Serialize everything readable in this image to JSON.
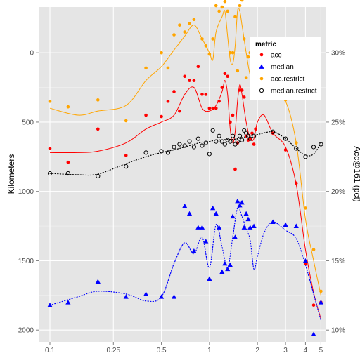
{
  "chart_data": {
    "type": "scatter",
    "x_scale": "log",
    "x_ticks": [
      0.1,
      0.25,
      0.5,
      1,
      2,
      3,
      4,
      5
    ],
    "x_tick_labels": [
      "0.1",
      "0.25",
      "0.5",
      "1",
      "2",
      "3",
      "4",
      "5"
    ],
    "xlim": [
      0.085,
      5.4
    ],
    "y_left": {
      "label": "Kilometers",
      "reversed": true,
      "ticks": [
        0,
        500,
        1000,
        1500,
        2000
      ],
      "tick_labels": [
        "0",
        "500",
        "1000",
        "1500",
        "2000"
      ],
      "lim": [
        2085,
        -330
      ]
    },
    "y_right": {
      "label": "Acc@161 (pct)",
      "ticks": [
        0.1,
        0.15,
        0.2,
        0.25,
        0.3
      ],
      "tick_labels": [
        "10%",
        "15%",
        "20%",
        "25%",
        "30%"
      ]
    },
    "right_axis_map": {
      "pct_at_0km": 0.3,
      "km_per_pct_point": 100
    },
    "grid": true,
    "legend": {
      "title": "metric",
      "position": "top-right",
      "entries": [
        {
          "label": "acc",
          "color": "#ff0000",
          "shape": "dot"
        },
        {
          "label": "median",
          "color": "#0000ff",
          "shape": "triangle"
        },
        {
          "label": "acc.restrict",
          "color": "#ffa500",
          "shape": "dot"
        },
        {
          "label": "median.restrict",
          "color": "#000000",
          "shape": "open-circle"
        }
      ]
    },
    "series": [
      {
        "name": "acc",
        "axis": "right",
        "color": "#ff0000",
        "shape": "dot",
        "line": "solid",
        "points": [
          [
            0.1,
            0.231
          ],
          [
            0.13,
            0.221
          ],
          [
            0.2,
            0.245
          ],
          [
            0.3,
            0.226
          ],
          [
            0.4,
            0.255
          ],
          [
            0.5,
            0.254
          ],
          [
            0.55,
            0.265
          ],
          [
            0.6,
            0.272
          ],
          [
            0.65,
            0.258
          ],
          [
            0.7,
            0.283
          ],
          [
            0.75,
            0.28
          ],
          [
            0.8,
            0.28
          ],
          [
            0.85,
            0.29
          ],
          [
            0.9,
            0.27
          ],
          [
            0.95,
            0.27
          ],
          [
            1.0,
            0.26
          ],
          [
            1.05,
            0.26
          ],
          [
            1.1,
            0.26
          ],
          [
            1.15,
            0.265
          ],
          [
            1.2,
            0.275
          ],
          [
            1.25,
            0.285
          ],
          [
            1.3,
            0.283
          ],
          [
            1.35,
            0.25
          ],
          [
            1.4,
            0.255
          ],
          [
            1.45,
            0.216
          ],
          [
            1.5,
            0.235
          ],
          [
            1.55,
            0.273
          ],
          [
            1.6,
            0.273
          ],
          [
            1.65,
            0.268
          ],
          [
            1.7,
            0.24
          ],
          [
            1.75,
            0.237
          ],
          [
            1.8,
            0.238
          ],
          [
            1.85,
            0.242
          ],
          [
            1.9,
            0.234
          ],
          [
            1.95,
            0.245
          ],
          [
            2.5,
            0.242
          ],
          [
            3.0,
            0.23
          ],
          [
            3.5,
            0.206
          ],
          [
            4.0,
            0.148
          ],
          [
            4.5,
            0.118
          ],
          [
            5.0,
            0.12
          ]
        ],
        "curve": [
          [
            0.1,
            0.228
          ],
          [
            0.15,
            0.228
          ],
          [
            0.2,
            0.229
          ],
          [
            0.3,
            0.235
          ],
          [
            0.4,
            0.245
          ],
          [
            0.5,
            0.25
          ],
          [
            0.6,
            0.255
          ],
          [
            0.7,
            0.27
          ],
          [
            0.8,
            0.275
          ],
          [
            0.9,
            0.26
          ],
          [
            1.0,
            0.258
          ],
          [
            1.1,
            0.262
          ],
          [
            1.2,
            0.272
          ],
          [
            1.25,
            0.28
          ],
          [
            1.3,
            0.27
          ],
          [
            1.35,
            0.245
          ],
          [
            1.4,
            0.235
          ],
          [
            1.45,
            0.243
          ],
          [
            1.5,
            0.265
          ],
          [
            1.55,
            0.277
          ],
          [
            1.6,
            0.27
          ],
          [
            1.7,
            0.25
          ],
          [
            1.8,
            0.238
          ],
          [
            1.9,
            0.238
          ],
          [
            2.0,
            0.25
          ],
          [
            2.2,
            0.255
          ],
          [
            2.5,
            0.242
          ],
          [
            3.0,
            0.232
          ],
          [
            3.5,
            0.205
          ],
          [
            4.0,
            0.158
          ],
          [
            4.5,
            0.127
          ],
          [
            5.0,
            0.108
          ]
        ]
      },
      {
        "name": "median",
        "axis": "left",
        "color": "#0000ff",
        "shape": "triangle",
        "line": "dotted",
        "points": [
          [
            0.1,
            1820
          ],
          [
            0.13,
            1800
          ],
          [
            0.2,
            1650
          ],
          [
            0.3,
            1760
          ],
          [
            0.4,
            1740
          ],
          [
            0.5,
            1760
          ],
          [
            0.6,
            1760
          ],
          [
            0.7,
            1105
          ],
          [
            0.75,
            1160
          ],
          [
            0.8,
            1430
          ],
          [
            0.85,
            1260
          ],
          [
            0.9,
            1260
          ],
          [
            0.95,
            1360
          ],
          [
            1.0,
            1630
          ],
          [
            1.05,
            1120
          ],
          [
            1.1,
            1160
          ],
          [
            1.15,
            1260
          ],
          [
            1.2,
            1580
          ],
          [
            1.25,
            1520
          ],
          [
            1.3,
            1560
          ],
          [
            1.35,
            1530
          ],
          [
            1.4,
            1180
          ],
          [
            1.45,
            1330
          ],
          [
            1.5,
            1070
          ],
          [
            1.55,
            1100
          ],
          [
            1.6,
            1080
          ],
          [
            1.65,
            1260
          ],
          [
            1.7,
            1160
          ],
          [
            1.75,
            1200
          ],
          [
            1.8,
            1260
          ],
          [
            1.9,
            1250
          ],
          [
            2.5,
            1220
          ],
          [
            3.0,
            1240
          ],
          [
            3.5,
            1250
          ],
          [
            4.0,
            1500
          ],
          [
            4.5,
            2030
          ],
          [
            5.0,
            1800
          ]
        ],
        "curve": [
          [
            0.1,
            1820
          ],
          [
            0.15,
            1760
          ],
          [
            0.2,
            1720
          ],
          [
            0.3,
            1740
          ],
          [
            0.4,
            1790
          ],
          [
            0.5,
            1760
          ],
          [
            0.6,
            1520
          ],
          [
            0.7,
            1370
          ],
          [
            0.8,
            1450
          ],
          [
            0.9,
            1330
          ],
          [
            1.0,
            1550
          ],
          [
            1.1,
            1240
          ],
          [
            1.2,
            1400
          ],
          [
            1.3,
            1550
          ],
          [
            1.4,
            1330
          ],
          [
            1.5,
            1120
          ],
          [
            1.6,
            1180
          ],
          [
            1.7,
            1270
          ],
          [
            1.8,
            1350
          ],
          [
            1.9,
            1560
          ],
          [
            2.0,
            1470
          ],
          [
            2.2,
            1300
          ],
          [
            2.5,
            1220
          ],
          [
            3.0,
            1280
          ],
          [
            3.5,
            1340
          ],
          [
            4.0,
            1530
          ],
          [
            4.5,
            1740
          ],
          [
            5.0,
            1930
          ]
        ]
      },
      {
        "name": "acc.restrict",
        "axis": "right",
        "color": "#ffa500",
        "shape": "dot",
        "line": "solid",
        "points": [
          [
            0.1,
            0.265
          ],
          [
            0.13,
            0.261
          ],
          [
            0.2,
            0.266
          ],
          [
            0.3,
            0.251
          ],
          [
            0.4,
            0.289
          ],
          [
            0.5,
            0.3
          ],
          [
            0.55,
            0.289
          ],
          [
            0.6,
            0.313
          ],
          [
            0.65,
            0.32
          ],
          [
            0.7,
            0.315
          ],
          [
            0.75,
            0.321
          ],
          [
            0.8,
            0.324
          ],
          [
            0.85,
            0.34
          ],
          [
            0.9,
            0.31
          ],
          [
            0.95,
            0.305
          ],
          [
            1.0,
            0.299
          ],
          [
            1.05,
            0.31
          ],
          [
            1.1,
            0.334
          ],
          [
            1.15,
            0.33
          ],
          [
            1.2,
            0.333
          ],
          [
            1.25,
            0.337
          ],
          [
            1.3,
            0.33
          ],
          [
            1.35,
            0.3
          ],
          [
            1.4,
            0.3
          ],
          [
            1.45,
            0.326
          ],
          [
            1.5,
            0.287
          ],
          [
            1.55,
            0.334
          ],
          [
            1.6,
            0.338
          ],
          [
            1.65,
            0.31
          ],
          [
            1.7,
            0.282
          ],
          [
            1.75,
            0.297
          ],
          [
            1.8,
            0.3
          ],
          [
            1.85,
            0.29
          ],
          [
            1.9,
            0.285
          ],
          [
            1.95,
            0.3
          ],
          [
            2.5,
            0.27
          ],
          [
            3.0,
            0.266
          ],
          [
            3.5,
            0.235
          ],
          [
            4.0,
            0.188
          ],
          [
            4.5,
            0.158
          ],
          [
            5.0,
            0.128
          ]
        ],
        "curve": [
          [
            0.1,
            0.26
          ],
          [
            0.15,
            0.255
          ],
          [
            0.2,
            0.258
          ],
          [
            0.3,
            0.262
          ],
          [
            0.4,
            0.28
          ],
          [
            0.5,
            0.29
          ],
          [
            0.6,
            0.302
          ],
          [
            0.7,
            0.312
          ],
          [
            0.8,
            0.32
          ],
          [
            0.9,
            0.31
          ],
          [
            1.0,
            0.3
          ],
          [
            1.05,
            0.295
          ],
          [
            1.1,
            0.315
          ],
          [
            1.2,
            0.326
          ],
          [
            1.25,
            0.33
          ],
          [
            1.3,
            0.312
          ],
          [
            1.35,
            0.295
          ],
          [
            1.4,
            0.292
          ],
          [
            1.45,
            0.305
          ],
          [
            1.5,
            0.33
          ],
          [
            1.55,
            0.33
          ],
          [
            1.6,
            0.32
          ],
          [
            1.7,
            0.3
          ],
          [
            1.8,
            0.284
          ],
          [
            1.9,
            0.282
          ],
          [
            2.0,
            0.275
          ],
          [
            2.2,
            0.27
          ],
          [
            2.5,
            0.271
          ],
          [
            3.0,
            0.265
          ],
          [
            3.5,
            0.235
          ],
          [
            4.0,
            0.18
          ],
          [
            4.5,
            0.15
          ],
          [
            5.0,
            0.125
          ]
        ]
      },
      {
        "name": "median.restrict",
        "axis": "left",
        "color": "#000000",
        "shape": "open-circle",
        "line": "dotted",
        "points": [
          [
            0.1,
            870
          ],
          [
            0.13,
            870
          ],
          [
            0.2,
            890
          ],
          [
            0.3,
            820
          ],
          [
            0.4,
            720
          ],
          [
            0.5,
            710
          ],
          [
            0.55,
            720
          ],
          [
            0.6,
            680
          ],
          [
            0.65,
            660
          ],
          [
            0.7,
            670
          ],
          [
            0.75,
            640
          ],
          [
            0.8,
            680
          ],
          [
            0.85,
            620
          ],
          [
            0.9,
            670
          ],
          [
            0.95,
            650
          ],
          [
            1.0,
            730
          ],
          [
            1.05,
            560
          ],
          [
            1.1,
            640
          ],
          [
            1.15,
            600
          ],
          [
            1.2,
            640
          ],
          [
            1.25,
            660
          ],
          [
            1.3,
            630
          ],
          [
            1.35,
            640
          ],
          [
            1.4,
            600
          ],
          [
            1.45,
            660
          ],
          [
            1.5,
            640
          ],
          [
            1.55,
            600
          ],
          [
            1.6,
            630
          ],
          [
            1.65,
            560
          ],
          [
            1.7,
            580
          ],
          [
            1.75,
            600
          ],
          [
            1.8,
            620
          ],
          [
            1.9,
            600
          ],
          [
            2.5,
            570
          ],
          [
            3.0,
            620
          ],
          [
            3.5,
            690
          ],
          [
            4.0,
            750
          ],
          [
            4.5,
            680
          ],
          [
            5.0,
            660
          ]
        ],
        "curve": [
          [
            0.1,
            870
          ],
          [
            0.15,
            880
          ],
          [
            0.2,
            875
          ],
          [
            0.3,
            800
          ],
          [
            0.4,
            750
          ],
          [
            0.5,
            720
          ],
          [
            0.6,
            700
          ],
          [
            0.7,
            680
          ],
          [
            0.8,
            660
          ],
          [
            0.9,
            645
          ],
          [
            1.0,
            640
          ],
          [
            1.1,
            630
          ],
          [
            1.2,
            628
          ],
          [
            1.3,
            625
          ],
          [
            1.4,
            625
          ],
          [
            1.5,
            620
          ],
          [
            1.6,
            612
          ],
          [
            1.7,
            605
          ],
          [
            1.8,
            600
          ],
          [
            2.0,
            590
          ],
          [
            2.5,
            570
          ],
          [
            3.0,
            620
          ],
          [
            3.5,
            690
          ],
          [
            4.0,
            740
          ],
          [
            4.5,
            730
          ],
          [
            5.0,
            650
          ]
        ]
      }
    ]
  }
}
